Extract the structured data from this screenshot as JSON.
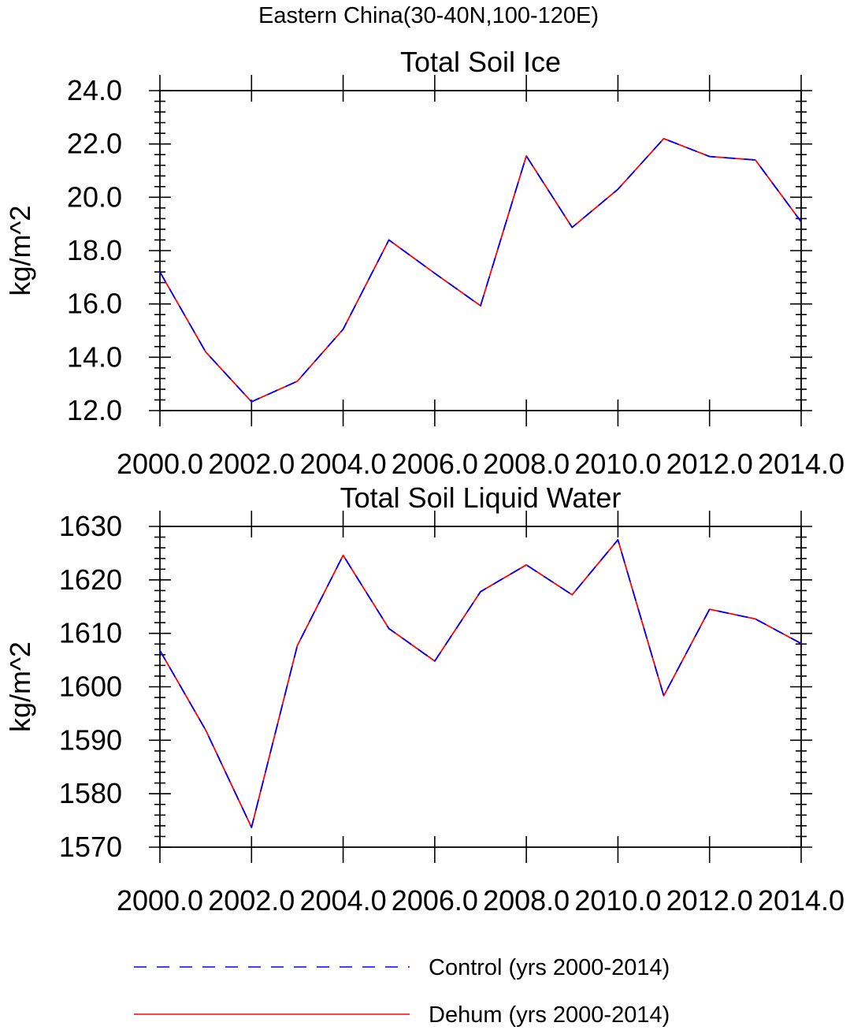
{
  "figure": {
    "suptitle": "Eastern China(30-40N,100-120E)"
  },
  "legend": {
    "position": "bottom",
    "entries": [
      {
        "label": "Control (yrs 2000-2014)",
        "color": "#0000ff",
        "style": "dashed"
      },
      {
        "label": "Dehum (yrs 2000-2014)",
        "color": "#ff0000",
        "style": "solid"
      }
    ]
  },
  "chart_data": [
    {
      "type": "line",
      "title": "Total Soil Ice",
      "xlabel": "",
      "ylabel": "kg/m^2",
      "xlim": [
        2000,
        2014
      ],
      "ylim": [
        12,
        24
      ],
      "xticks": [
        2000,
        2002,
        2004,
        2006,
        2008,
        2010,
        2012,
        2014
      ],
      "xtick_labels": [
        "2000.0",
        "2002.0",
        "2004.0",
        "2006.0",
        "2008.0",
        "2010.0",
        "2012.0",
        "2014.0"
      ],
      "yticks": [
        12,
        14,
        16,
        18,
        20,
        22,
        24
      ],
      "ytick_labels": [
        "12.0",
        "14.0",
        "16.0",
        "18.0",
        "20.0",
        "22.0",
        "24.0"
      ],
      "x": [
        2000,
        2001,
        2002,
        2003,
        2004,
        2005,
        2006,
        2007,
        2008,
        2009,
        2010,
        2011,
        2012,
        2013,
        2014
      ],
      "series": [
        {
          "name": "Control (yrs 2000-2014)",
          "color": "#0000ff",
          "style": "dashed",
          "values": [
            17.2,
            14.2,
            12.33,
            13.1,
            15.05,
            18.4,
            17.15,
            15.93,
            21.55,
            18.87,
            20.3,
            22.2,
            21.53,
            21.4,
            19.08
          ]
        },
        {
          "name": "Dehum (yrs 2000-2014)",
          "color": "#ff0000",
          "style": "solid",
          "values": [
            17.2,
            14.2,
            12.33,
            13.1,
            15.05,
            18.4,
            17.15,
            15.93,
            21.55,
            18.87,
            20.3,
            22.2,
            21.53,
            21.4,
            19.08
          ]
        }
      ]
    },
    {
      "type": "line",
      "title": "Total Soil Liquid Water",
      "xlabel": "",
      "ylabel": "kg/m^2",
      "xlim": [
        2000,
        2014
      ],
      "ylim": [
        1570,
        1630
      ],
      "xticks": [
        2000,
        2002,
        2004,
        2006,
        2008,
        2010,
        2012,
        2014
      ],
      "xtick_labels": [
        "2000.0",
        "2002.0",
        "2004.0",
        "2006.0",
        "2008.0",
        "2010.0",
        "2012.0",
        "2014.0"
      ],
      "yticks": [
        1570,
        1580,
        1590,
        1600,
        1610,
        1620,
        1630
      ],
      "ytick_labels": [
        "1570",
        "1580",
        "1590",
        "1600",
        "1610",
        "1620",
        "1630"
      ],
      "x": [
        2000,
        2001,
        2002,
        2003,
        2004,
        2005,
        2006,
        2007,
        2008,
        2009,
        2010,
        2011,
        2012,
        2013,
        2014
      ],
      "series": [
        {
          "name": "Control (yrs 2000-2014)",
          "color": "#0000ff",
          "style": "dashed",
          "values": [
            1606.8,
            1591.9,
            1573.7,
            1607.7,
            1624.6,
            1610.9,
            1604.8,
            1617.8,
            1622.8,
            1617.2,
            1627.5,
            1598.3,
            1614.5,
            1612.7,
            1608.1
          ]
        },
        {
          "name": "Dehum (yrs 2000-2014)",
          "color": "#ff0000",
          "style": "solid",
          "values": [
            1606.8,
            1591.9,
            1573.7,
            1607.7,
            1624.6,
            1610.9,
            1604.8,
            1617.8,
            1622.8,
            1617.2,
            1627.5,
            1598.3,
            1614.5,
            1612.7,
            1608.1
          ]
        }
      ]
    }
  ]
}
